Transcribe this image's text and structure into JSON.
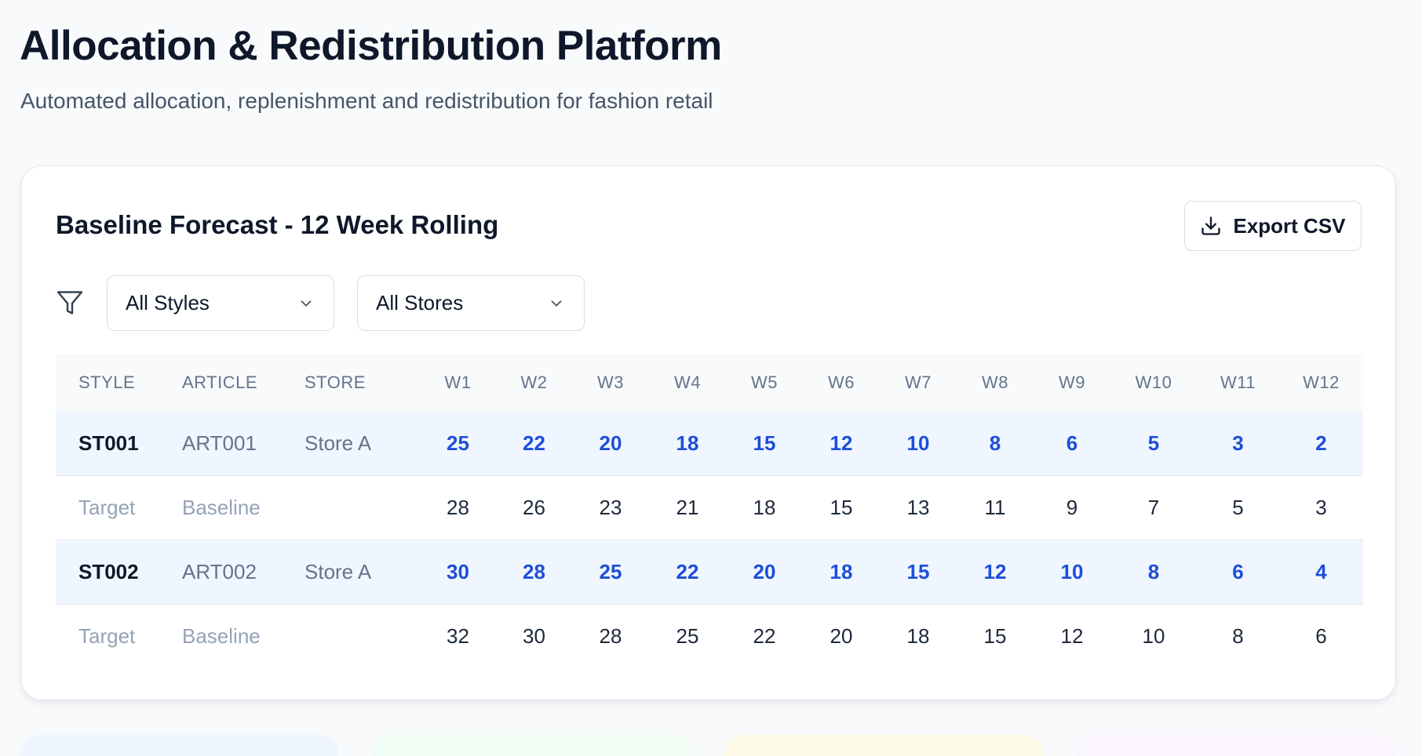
{
  "header": {
    "title": "Allocation & Redistribution Platform",
    "subtitle": "Automated allocation, replenishment and redistribution for fashion retail"
  },
  "forecast_panel": {
    "title": "Baseline Forecast - 12 Week Rolling",
    "export_label": "Export CSV",
    "filters": {
      "styles_selected": "All Styles",
      "stores_selected": "All Stores"
    },
    "columns": [
      "STYLE",
      "ARTICLE",
      "STORE",
      "W1",
      "W2",
      "W3",
      "W4",
      "W5",
      "W6",
      "W7",
      "W8",
      "W9",
      "W10",
      "W11",
      "W12"
    ],
    "rows": [
      {
        "style": "ST001",
        "article": "ART001",
        "store": "Store A",
        "forecast": [
          "25",
          "22",
          "20",
          "18",
          "15",
          "12",
          "10",
          "8",
          "6",
          "5",
          "3",
          "2"
        ],
        "target_label": "Target",
        "target_type": "Baseline",
        "target": [
          "28",
          "26",
          "23",
          "21",
          "18",
          "15",
          "13",
          "11",
          "9",
          "7",
          "5",
          "3"
        ]
      },
      {
        "style": "ST002",
        "article": "ART002",
        "store": "Store A",
        "forecast": [
          "30",
          "28",
          "25",
          "22",
          "20",
          "18",
          "15",
          "12",
          "10",
          "8",
          "6",
          "4"
        ],
        "target_label": "Target",
        "target_type": "Baseline",
        "target": [
          "32",
          "30",
          "28",
          "25",
          "22",
          "20",
          "18",
          "15",
          "12",
          "10",
          "8",
          "6"
        ]
      }
    ]
  },
  "colors": {
    "forecast_value": "#1d4ed8",
    "forecast_row_bg": "#eff6ff",
    "tile_blue": "#eff6ff",
    "tile_green": "#f0fdf4",
    "tile_yellow": "#fefce8",
    "tile_purple": "#faf5ff"
  }
}
